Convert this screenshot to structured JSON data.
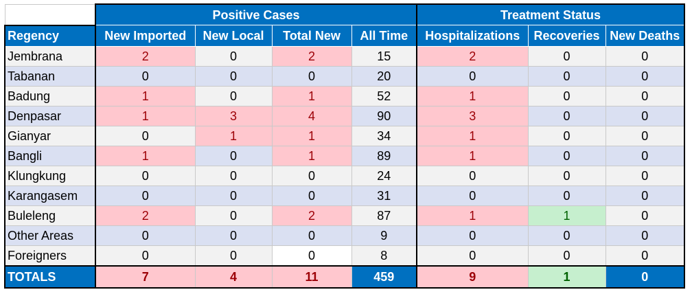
{
  "group_headers": {
    "positive_cases": "Positive Cases",
    "treatment_status": "Treatment Status"
  },
  "columns": [
    "Regency",
    "New Imported",
    "New Local",
    "Total New",
    "All Time",
    "Hospitalizations",
    "Recoveries",
    "New Deaths"
  ],
  "rows": [
    {
      "name": "Jembrana",
      "values": [
        "2",
        "0",
        "2",
        "15",
        "2",
        "0",
        "0"
      ]
    },
    {
      "name": "Tabanan",
      "values": [
        "0",
        "0",
        "0",
        "20",
        "0",
        "0",
        "0"
      ]
    },
    {
      "name": "Badung",
      "values": [
        "1",
        "0",
        "1",
        "52",
        "1",
        "0",
        "0"
      ]
    },
    {
      "name": "Denpasar",
      "values": [
        "1",
        "3",
        "4",
        "90",
        "3",
        "0",
        "0"
      ]
    },
    {
      "name": "Gianyar",
      "values": [
        "0",
        "1",
        "1",
        "34",
        "1",
        "0",
        "0"
      ]
    },
    {
      "name": "Bangli",
      "values": [
        "1",
        "0",
        "1",
        "89",
        "1",
        "0",
        "0"
      ]
    },
    {
      "name": "Klungkung",
      "values": [
        "0",
        "0",
        "0",
        "24",
        "0",
        "0",
        "0"
      ]
    },
    {
      "name": "Karangasem",
      "values": [
        "0",
        "0",
        "0",
        "31",
        "0",
        "0",
        "0"
      ]
    },
    {
      "name": "Buleleng",
      "values": [
        "2",
        "0",
        "2",
        "87",
        "1",
        "1",
        "0"
      ]
    },
    {
      "name": "Other Areas",
      "values": [
        "0",
        "0",
        "0",
        "9",
        "0",
        "0",
        "0"
      ]
    },
    {
      "name": "Foreigners",
      "values": [
        "0",
        "0",
        "0",
        "8",
        "0",
        "0",
        "0"
      ]
    }
  ],
  "totals": {
    "name": "TOTALS",
    "values": [
      "7",
      "4",
      "11",
      "459",
      "9",
      "1",
      "0"
    ]
  },
  "colors": {
    "header_blue": "#0070c0",
    "highlight_pink": "#ffc7ce",
    "highlight_pink_text": "#9c0006",
    "highlight_green": "#c6efce",
    "highlight_green_text": "#006100",
    "row_gray": "#f2f2f2",
    "row_blue": "#dae0f2"
  }
}
